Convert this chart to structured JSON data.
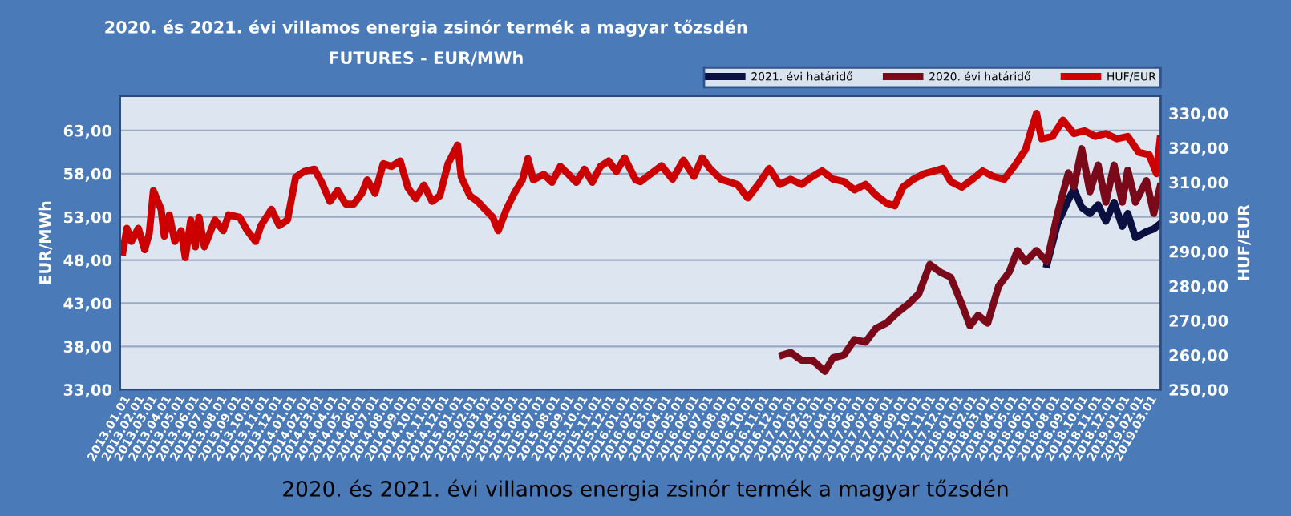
{
  "chart_data": {
    "type": "line",
    "title": "2020. és 2021. évi villamos energia zsinór termék a magyar tőzsdén",
    "subtitle": "FUTURES - EUR/MWh",
    "ylabel": "EUR/MWh",
    "y2label": "HUF/EUR",
    "annotations": [
      "2020. és 2021. évi villamos energia zsinór termék a magyar tőzsdén"
    ],
    "legend": "top right",
    "grid": "y",
    "line_style": "solid",
    "marker": "none",
    "xlim": [
      "2012-12-26",
      "2019-03-26"
    ],
    "xticks": [
      {
        "value": "2013-01-01",
        "label": "2013.01.01"
      },
      {
        "value": "2013-02-01",
        "label": "2013.02.01"
      },
      {
        "value": "2013-03-01",
        "label": "2013.03.01"
      },
      {
        "value": "2013-04-01",
        "label": "2013.04.01"
      },
      {
        "value": "2013-05-01",
        "label": "2013.05.01"
      },
      {
        "value": "2013-06-01",
        "label": "2013.06.01"
      },
      {
        "value": "2013-07-01",
        "label": "2013.07.01"
      },
      {
        "value": "2013-08-01",
        "label": "2013.08.01"
      },
      {
        "value": "2013-09-01",
        "label": "2013.09.01"
      },
      {
        "value": "2013-10-01",
        "label": "2013.10.01"
      },
      {
        "value": "2013-11-01",
        "label": "2013.11.01"
      },
      {
        "value": "2013-12-01",
        "label": "2013.12.01"
      },
      {
        "value": "2014-01-01",
        "label": "2014.01.01"
      },
      {
        "value": "2014-02-01",
        "label": "2014.02.01"
      },
      {
        "value": "2014-03-01",
        "label": "2014.03.01"
      },
      {
        "value": "2014-04-01",
        "label": "2014.04.01"
      },
      {
        "value": "2014-05-01",
        "label": "2014.05.01"
      },
      {
        "value": "2014-06-01",
        "label": "2014.06.01"
      },
      {
        "value": "2014-07-01",
        "label": "2014.07.01"
      },
      {
        "value": "2014-08-01",
        "label": "2014.08.01"
      },
      {
        "value": "2014-09-01",
        "label": "2014.09.01"
      },
      {
        "value": "2014-10-01",
        "label": "2014.10.01"
      },
      {
        "value": "2014-11-01",
        "label": "2014.11.01"
      },
      {
        "value": "2014-12-01",
        "label": "2014.12.01"
      },
      {
        "value": "2015-01-01",
        "label": "2015.01.01"
      },
      {
        "value": "2015-02-01",
        "label": "2015.02.01"
      },
      {
        "value": "2015-03-01",
        "label": "2015.03.01"
      },
      {
        "value": "2015-04-01",
        "label": "2015.04.01"
      },
      {
        "value": "2015-05-01",
        "label": "2015.05.01"
      },
      {
        "value": "2015-06-01",
        "label": "2015.06.01"
      },
      {
        "value": "2015-07-01",
        "label": "2015.07.01"
      },
      {
        "value": "2015-08-01",
        "label": "2015.08.01"
      },
      {
        "value": "2015-09-01",
        "label": "2015.09.01"
      },
      {
        "value": "2015-10-01",
        "label": "2015.10.01"
      },
      {
        "value": "2015-11-01",
        "label": "2015.11.01"
      },
      {
        "value": "2015-12-01",
        "label": "2015.12.01"
      },
      {
        "value": "2016-01-01",
        "label": "2016.01.01"
      },
      {
        "value": "2016-02-01",
        "label": "2016.02.01"
      },
      {
        "value": "2016-03-01",
        "label": "2016.03.01"
      },
      {
        "value": "2016-04-01",
        "label": "2016.04.01"
      },
      {
        "value": "2016-05-01",
        "label": "2016.05.01"
      },
      {
        "value": "2016-06-01",
        "label": "2016.06.01"
      },
      {
        "value": "2016-07-01",
        "label": "2016.07.01"
      },
      {
        "value": "2016-08-01",
        "label": "2016.08.01"
      },
      {
        "value": "2016-09-01",
        "label": "2016.09.01"
      },
      {
        "value": "2016-10-01",
        "label": "2016.10.01"
      },
      {
        "value": "2016-11-01",
        "label": "2016.11.01"
      },
      {
        "value": "2016-12-01",
        "label": "2016.12.01"
      },
      {
        "value": "2017-01-01",
        "label": "2017.01.01"
      },
      {
        "value": "2017-02-01",
        "label": "2017.02.01"
      },
      {
        "value": "2017-03-01",
        "label": "2017.03.01"
      },
      {
        "value": "2017-04-01",
        "label": "2017.04.01"
      },
      {
        "value": "2017-05-01",
        "label": "2017.05.01"
      },
      {
        "value": "2017-06-01",
        "label": "2017.06.01"
      },
      {
        "value": "2017-07-01",
        "label": "2017.07.01"
      },
      {
        "value": "2017-08-01",
        "label": "2017.08.01"
      },
      {
        "value": "2017-09-01",
        "label": "2017.09.01"
      },
      {
        "value": "2017-10-01",
        "label": "2017.10.01"
      },
      {
        "value": "2017-11-01",
        "label": "2017.11.01"
      },
      {
        "value": "2017-12-01",
        "label": "2017.12.01"
      },
      {
        "value": "2018-01-01",
        "label": "2018.01.01"
      },
      {
        "value": "2018-02-01",
        "label": "2018.02.01"
      },
      {
        "value": "2018-03-01",
        "label": "2018.03.01"
      },
      {
        "value": "2018-04-01",
        "label": "2018.04.01"
      },
      {
        "value": "2018-05-01",
        "label": "2018.05.01"
      },
      {
        "value": "2018-06-01",
        "label": "2018.06.01"
      },
      {
        "value": "2018-07-01",
        "label": "2018.07.01"
      },
      {
        "value": "2018-08-01",
        "label": "2018.08.01"
      },
      {
        "value": "2018-09-01",
        "label": "2018.09.01"
      },
      {
        "value": "2018-10-01",
        "label": "2018.10.01"
      },
      {
        "value": "2018-11-01",
        "label": "2018.11.01"
      },
      {
        "value": "2018-12-01",
        "label": "2018.12.01"
      },
      {
        "value": "2019-01-01",
        "label": "2019.01.01"
      },
      {
        "value": "2019-02-01",
        "label": "2019.02.01"
      },
      {
        "value": "2019-03-01",
        "label": "2019.03.01"
      }
    ],
    "ylim": [
      33,
      67
    ],
    "yticks": [
      {
        "value": 33,
        "label": "33,00"
      },
      {
        "value": 38,
        "label": "38,00"
      },
      {
        "value": 43,
        "label": "43,00"
      },
      {
        "value": 48,
        "label": "48,00"
      },
      {
        "value": 53,
        "label": "53,00"
      },
      {
        "value": 58,
        "label": "58,00"
      },
      {
        "value": 63,
        "label": "63,00"
      }
    ],
    "y2lim": [
      250,
      335
    ],
    "y2ticks": [
      {
        "value": 250,
        "label": "250,00"
      },
      {
        "value": 260,
        "label": "260,00"
      },
      {
        "value": 270,
        "label": "270,00"
      },
      {
        "value": 280,
        "label": "280,00"
      },
      {
        "value": 290,
        "label": "290,00"
      },
      {
        "value": 300,
        "label": "300,00"
      },
      {
        "value": 310,
        "label": "310,00"
      },
      {
        "value": 320,
        "label": "320,00"
      },
      {
        "value": 330,
        "label": "330,00"
      }
    ],
    "series": [
      {
        "name": "2021. évi határidő",
        "color": "#0a1040",
        "x": [
          "2018-07-20",
          "2018-08-12",
          "2018-09-05",
          "2018-09-17",
          "2018-10-04",
          "2018-10-22",
          "2018-11-09",
          "2018-11-26",
          "2018-12-14",
          "2019-01-01",
          "2019-01-13",
          "2019-01-30",
          "2019-02-23",
          "2019-03-11",
          "2019-03-25"
        ],
        "values": [
          47.5,
          52.2,
          55.0,
          56.2,
          54.1,
          53.4,
          54.4,
          52.5,
          54.7,
          51.9,
          53.4,
          50.6,
          51.3,
          51.6,
          52.2
        ]
      },
      {
        "name": "2020. évi határidő",
        "color": "#7a0a1a",
        "x": [
          "2016-12-17",
          "2017-01-04",
          "2017-01-28",
          "2017-02-21",
          "2017-03-20",
          "2017-04-07",
          "2017-05-01",
          "2017-05-24",
          "2017-06-17",
          "2017-07-10",
          "2017-08-02",
          "2017-08-26",
          "2017-09-19",
          "2017-10-12",
          "2017-11-05",
          "2017-11-28",
          "2017-12-21",
          "2018-01-14",
          "2018-02-01",
          "2018-02-19",
          "2018-03-12",
          "2018-04-05",
          "2018-04-28",
          "2018-05-16",
          "2018-06-03",
          "2018-06-27",
          "2018-07-20",
          "2018-08-12",
          "2018-09-05",
          "2018-09-17",
          "2018-10-04",
          "2018-10-22",
          "2018-11-09",
          "2018-11-26",
          "2018-12-14",
          "2019-01-01",
          "2019-01-13",
          "2019-01-30",
          "2019-02-23",
          "2019-03-11",
          "2019-03-25"
        ],
        "values": [
          37.0,
          37.3,
          36.4,
          36.4,
          35.1,
          36.7,
          37.0,
          38.8,
          38.5,
          40.1,
          40.7,
          41.9,
          42.9,
          44.1,
          47.5,
          46.6,
          46.0,
          42.9,
          40.4,
          41.6,
          40.7,
          45.0,
          46.6,
          49.1,
          47.8,
          49.1,
          47.8,
          53.4,
          58.1,
          56.5,
          60.9,
          55.9,
          59.0,
          54.7,
          59.0,
          54.7,
          58.4,
          54.7,
          57.2,
          53.4,
          56.5
        ]
      },
      {
        "name": "HUF/EUR",
        "color": "#cc0000",
        "axis": "y2",
        "x": [
          "2013-01-01",
          "2013-01-10",
          "2013-01-20",
          "2013-02-04",
          "2013-02-18",
          "2013-02-28",
          "2013-03-09",
          "2013-03-26",
          "2013-04-02",
          "2013-04-13",
          "2013-04-25",
          "2013-05-09",
          "2013-05-18",
          "2013-05-30",
          "2013-06-09",
          "2013-06-17",
          "2013-06-29",
          "2013-07-22",
          "2013-08-09",
          "2013-08-21",
          "2013-09-14",
          "2013-10-01",
          "2013-10-19",
          "2013-10-31",
          "2013-11-23",
          "2013-12-10",
          "2013-12-28",
          "2014-01-15",
          "2014-02-02",
          "2014-02-25",
          "2014-03-13",
          "2014-03-31",
          "2014-04-17",
          "2014-05-05",
          "2014-05-22",
          "2014-06-09",
          "2014-06-21",
          "2014-07-08",
          "2014-07-26",
          "2014-08-13",
          "2014-09-01",
          "2014-09-18",
          "2014-10-05",
          "2014-10-23",
          "2014-11-10",
          "2014-11-27",
          "2014-12-15",
          "2015-01-05",
          "2015-01-13",
          "2015-02-01",
          "2015-02-18",
          "2015-03-06",
          "2015-03-23",
          "2015-04-04",
          "2015-04-22",
          "2015-05-09",
          "2015-05-27",
          "2015-06-08",
          "2015-06-20",
          "2015-07-13",
          "2015-07-31",
          "2015-08-18",
          "2015-09-05",
          "2015-09-22",
          "2015-10-10",
          "2015-10-27",
          "2015-11-14",
          "2015-12-02",
          "2015-12-19",
          "2016-01-06",
          "2016-01-30",
          "2016-02-10",
          "2016-03-04",
          "2016-03-27",
          "2016-04-20",
          "2016-05-14",
          "2016-06-06",
          "2016-06-24",
          "2016-07-11",
          "2016-08-04",
          "2016-09-09",
          "2016-10-02",
          "2016-10-25",
          "2016-11-18",
          "2016-12-11",
          "2017-01-04",
          "2017-01-28",
          "2017-02-21",
          "2017-03-14",
          "2017-04-07",
          "2017-05-01",
          "2017-05-24",
          "2017-06-17",
          "2017-07-10",
          "2017-08-02",
          "2017-08-20",
          "2017-09-07",
          "2017-09-30",
          "2017-10-24",
          "2017-11-16",
          "2017-12-04",
          "2017-12-21",
          "2018-01-14",
          "2018-02-07",
          "2018-03-01",
          "2018-03-24",
          "2018-04-17",
          "2018-05-10",
          "2018-06-03",
          "2018-06-15",
          "2018-06-27",
          "2018-07-08",
          "2018-08-01",
          "2018-08-24",
          "2018-09-17",
          "2018-10-10",
          "2018-11-03",
          "2018-11-26",
          "2018-12-20",
          "2019-01-13",
          "2019-02-06",
          "2019-03-01",
          "2019-03-17",
          "2019-03-25"
        ],
        "values": [
          289.8,
          296.7,
          292.9,
          296.7,
          290.5,
          295.2,
          307.6,
          302.2,
          294.4,
          300.6,
          292.9,
          296.0,
          288.2,
          299.1,
          291.3,
          299.9,
          291.3,
          299.1,
          296.0,
          300.6,
          299.9,
          296.0,
          292.9,
          297.5,
          302.2,
          297.5,
          299.1,
          311.5,
          313.1,
          313.8,
          310.0,
          304.5,
          307.6,
          303.7,
          303.7,
          306.8,
          310.7,
          306.8,
          315.4,
          314.6,
          316.2,
          308.4,
          305.3,
          309.2,
          304.5,
          306.1,
          315.4,
          320.8,
          311.5,
          306.1,
          304.5,
          302.2,
          299.9,
          296.0,
          302.2,
          306.8,
          310.7,
          316.9,
          310.7,
          312.3,
          310.0,
          314.6,
          312.3,
          310.0,
          313.8,
          310.0,
          314.6,
          316.2,
          313.1,
          317.1,
          310.7,
          310.2,
          312.5,
          314.8,
          310.9,
          316.4,
          311.7,
          317.1,
          314.0,
          310.9,
          309.4,
          305.5,
          309.4,
          314.0,
          309.4,
          310.9,
          309.4,
          311.7,
          313.3,
          310.9,
          310.2,
          307.8,
          309.4,
          306.3,
          304.0,
          303.2,
          308.6,
          310.9,
          312.5,
          313.3,
          314.0,
          310.2,
          308.6,
          310.9,
          313.3,
          311.7,
          310.9,
          314.8,
          319.5,
          324.9,
          330.0,
          322.6,
          323.3,
          328.0,
          324.1,
          324.9,
          323.3,
          324.1,
          322.6,
          323.3,
          318.7,
          318.0,
          312.5,
          322.6
        ]
      }
    ]
  }
}
